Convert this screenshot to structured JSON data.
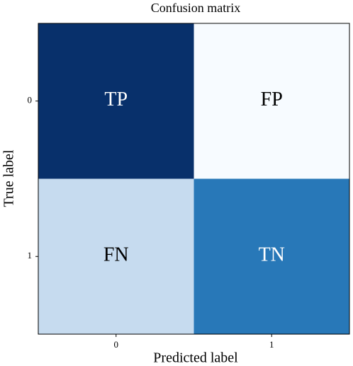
{
  "chart_data": {
    "type": "heatmap",
    "title": "Confusion matrix",
    "x_label": "Predicted label",
    "y_label": "True label",
    "x_categories": [
      "0",
      "1"
    ],
    "y_categories": [
      "0",
      "1"
    ],
    "cells": [
      [
        {
          "label": "TP",
          "color": "#08306b",
          "text_color": "#ffffff"
        },
        {
          "label": "FP",
          "color": "#f7fbff",
          "text_color": "#000000"
        }
      ],
      [
        {
          "label": "FN",
          "color": "#c6dbef",
          "text_color": "#000000"
        },
        {
          "label": "TN",
          "color": "#2878b8",
          "text_color": "#ffffff"
        }
      ]
    ]
  }
}
